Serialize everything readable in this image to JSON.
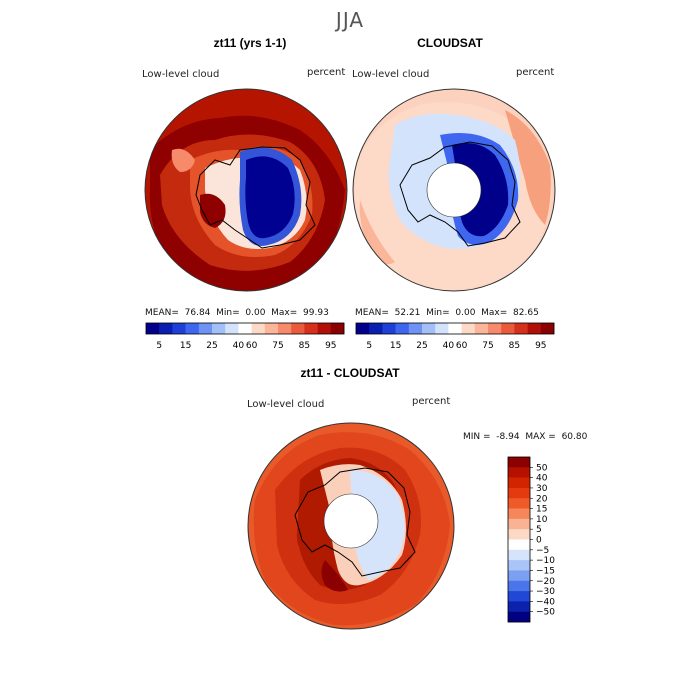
{
  "season": "JJA",
  "panels": [
    {
      "id": "model",
      "title": "zt11 (yrs 1-1)",
      "variable": "Low-level cloud",
      "units": "percent",
      "stats": {
        "mean_label": "MEAN=",
        "mean": "76.84",
        "min_label": "Min=",
        "min": "0.00",
        "max_label": "Max=",
        "max": "99.93"
      }
    },
    {
      "id": "obs",
      "title": "CLOUDSAT",
      "variable": "Low-level cloud",
      "units": "percent",
      "stats": {
        "mean_label": "MEAN=",
        "mean": "52.21",
        "min_label": "Min=",
        "min": "0.00",
        "max_label": "Max=",
        "max": "82.65"
      }
    }
  ],
  "diff_panel": {
    "title": "zt11 - CLOUDSAT",
    "variable": "Low-level cloud",
    "units": "percent",
    "stats": {
      "min_label": "MIN =",
      "min": "-8.94",
      "max_label": "MAX =",
      "max": "60.80"
    }
  },
  "colorbar_abs": {
    "labels": [
      "5",
      "15",
      "25",
      "40",
      "60",
      "75",
      "85",
      "95"
    ],
    "colors": [
      "#00008b",
      "#0a1fb0",
      "#1f40d6",
      "#3f66ee",
      "#6f92f5",
      "#a3bff8",
      "#d3e3fb",
      "#ffffff",
      "#fdd9c8",
      "#fbb69a",
      "#f68a6a",
      "#ea5a3c",
      "#d4301c",
      "#b01008",
      "#8b0000"
    ]
  },
  "colorbar_diff": {
    "labels": [
      "50",
      "40",
      "30",
      "20",
      "15",
      "10",
      "5",
      "0",
      "−5",
      "−10",
      "−15",
      "−20",
      "−30",
      "−40",
      "−50"
    ],
    "colors": [
      "#8b0000",
      "#b51000",
      "#d22400",
      "#e53a10",
      "#f05a28",
      "#f5875a",
      "#f9b293",
      "#fbd9c6",
      "#ffffff",
      "#d6e4fb",
      "#a9c4f7",
      "#7ba0f2",
      "#4b76e9",
      "#2147d6",
      "#0b22ad",
      "#000080"
    ]
  }
}
